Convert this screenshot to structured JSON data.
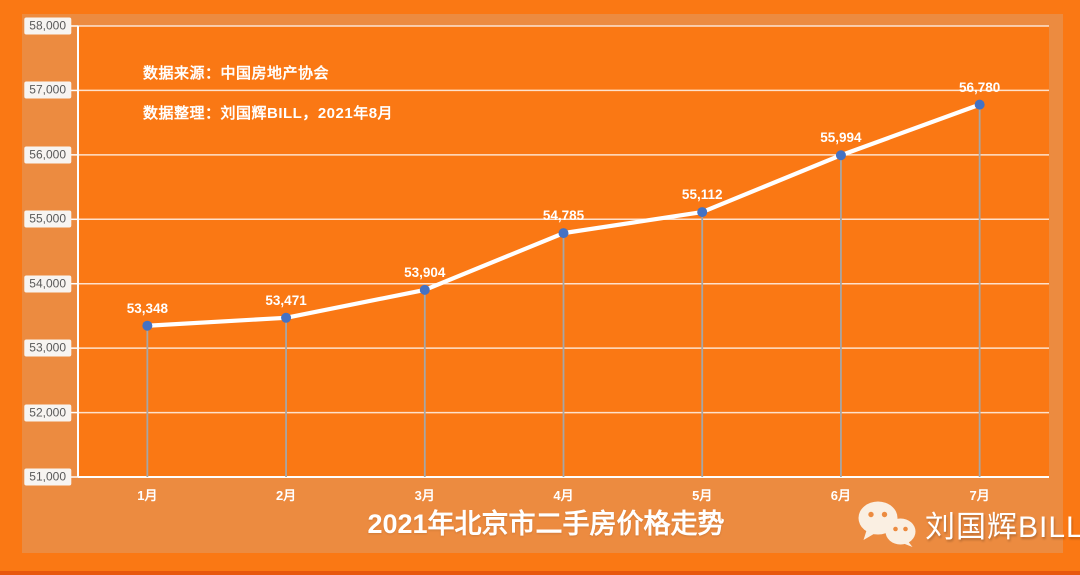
{
  "title": "2021年北京市二手房价格走势",
  "annotations": {
    "source": "数据来源：中国房地产协会",
    "prepared_by": "数据整理：刘国辉BILL，2021年8月"
  },
  "watermark": {
    "name": "刘国辉BILL",
    "icon": "wechat-icon"
  },
  "colors": {
    "page_bg": "#FA7814",
    "panel_bg": "#EC8B40",
    "bottom_strip": "#E8570E",
    "line": "#FFFFFF",
    "marker": "#4472C4",
    "drop_line": "#A6A6A6",
    "gridline": "rgba(255,255,255,0.78)",
    "axis": "#FFFFFF",
    "tick_chip_bg": "#F7F4F1",
    "tick_text": "#595959"
  },
  "chart_data": {
    "type": "line",
    "title": "2021年北京市二手房价格走势",
    "categories": [
      "1月",
      "2月",
      "3月",
      "4月",
      "5月",
      "6月",
      "7月"
    ],
    "values": [
      53348,
      53471,
      53904,
      54785,
      55112,
      55994,
      56780
    ],
    "data_labels": [
      "53,348",
      "53,471",
      "53,904",
      "54,785",
      "55,112",
      "55,994",
      "56,780"
    ],
    "xlabel": "",
    "ylabel": "",
    "ylim": [
      51000,
      58000
    ],
    "y_tick_step": 1000,
    "y_tick_labels": [
      "51,000",
      "52,000",
      "53,000",
      "54,000",
      "55,000",
      "56,000",
      "57,000",
      "58,000"
    ],
    "grid": true,
    "legend": "none",
    "line_color": "#FFFFFF",
    "marker_color": "#4472C4",
    "drop_lines": true
  }
}
